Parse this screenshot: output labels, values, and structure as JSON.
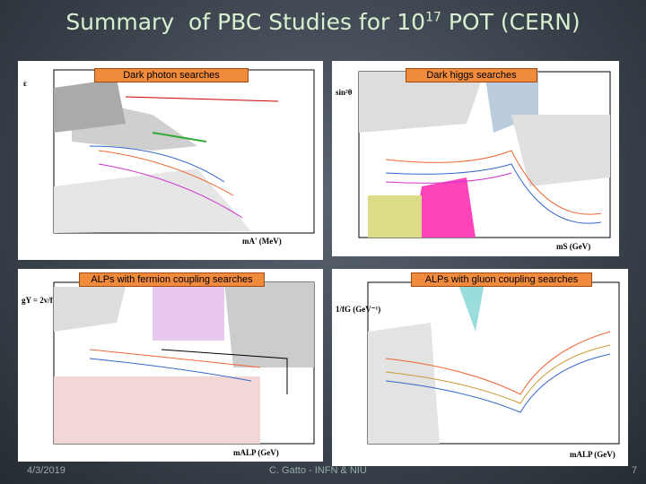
{
  "header": {
    "title_main": "Summary  of PBC Studies for 10",
    "title_sup": "17",
    "title_end": "POT (CERN)"
  },
  "panels": [
    {
      "label": "Dark photon searches",
      "y_axis": "ε",
      "x_axis": "mA' (MeV)"
    },
    {
      "label": "Dark higgs searches",
      "y_axis": "sin²θ",
      "x_axis": "mS (GeV)"
    },
    {
      "label": "ALPs with fermion coupling searches",
      "y_axis": "gY = 2v/f",
      "x_axis": "mALP (GeV)"
    },
    {
      "label": "ALPs with gluon coupling searches",
      "y_axis": "1/fG (GeV⁻¹)",
      "x_axis": "mALP (GeV)"
    }
  ],
  "footer": {
    "date": "4/3/2019",
    "author": "C. Gatto - INFN & NIU",
    "page": "7"
  }
}
